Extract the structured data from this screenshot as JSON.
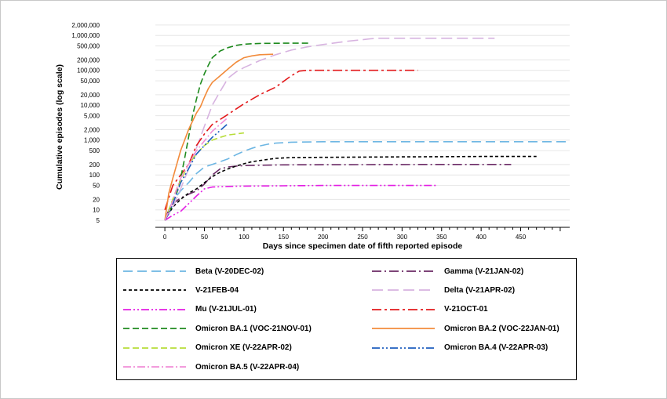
{
  "chart_data": {
    "type": "line",
    "xlabel": "Days since specimen date of fifth reported episode",
    "ylabel": "Cumulative episodes (log scale)",
    "x_ticks": [
      0,
      50,
      100,
      150,
      200,
      250,
      300,
      350,
      400,
      450
    ],
    "y_ticks": [
      5,
      10,
      20,
      50,
      100,
      200,
      500,
      1000,
      2000,
      5000,
      10000,
      20000,
      50000,
      100000,
      200000,
      500000,
      1000000,
      2000000
    ],
    "y_tick_labels": [
      "5",
      "10",
      "20",
      "50",
      "100",
      "200",
      "500",
      "1,000",
      "2,000",
      "5,000",
      "10,000",
      "20,000",
      "50,000",
      "100,000",
      "200,000",
      "500,000",
      "1,000,000",
      "2,000,000"
    ],
    "xlim": [
      -12,
      512
    ],
    "ylim": [
      3.5,
      3000000
    ],
    "y_scale": "log",
    "grid": "horizontal",
    "legend_position": "bottom",
    "series": [
      {
        "name": "Beta (V-20DEC-02)",
        "color": "#6db6e3",
        "dash": "12,6",
        "x": [
          0,
          5,
          10,
          20,
          30,
          40,
          50,
          60,
          70,
          80,
          90,
          100,
          110,
          120,
          130,
          140,
          160,
          200,
          250,
          300,
          350,
          400,
          450,
          510
        ],
        "y": [
          5,
          10,
          18,
          35,
          60,
          110,
          170,
          200,
          240,
          290,
          380,
          480,
          580,
          680,
          760,
          820,
          870,
          900,
          900,
          900,
          900,
          900,
          900,
          900
        ]
      },
      {
        "name": "Gamma (V-21JAN-02)",
        "color": "#6b2a66",
        "dash": "12,4,2,4",
        "x": [
          0,
          5,
          10,
          20,
          30,
          40,
          50,
          60,
          70,
          80,
          90,
          100,
          120,
          150,
          200,
          250,
          300,
          350,
          400,
          438
        ],
        "y": [
          5,
          10,
          15,
          22,
          28,
          35,
          55,
          100,
          150,
          170,
          180,
          185,
          190,
          195,
          197,
          198,
          199,
          200,
          200,
          200
        ]
      },
      {
        "name": "V-21FEB-04",
        "color": "#000000",
        "dash": "4,3",
        "x": [
          0,
          10,
          20,
          30,
          40,
          50,
          60,
          70,
          80,
          90,
          100,
          110,
          120,
          140,
          160,
          200,
          250,
          300,
          350,
          400,
          470
        ],
        "y": [
          5,
          12,
          20,
          30,
          40,
          60,
          90,
          120,
          150,
          180,
          210,
          240,
          260,
          300,
          315,
          320,
          325,
          330,
          335,
          340,
          340
        ]
      },
      {
        "name": "Delta (V-21APR-02)",
        "color": "#d7b3e0",
        "dash": "14,6",
        "x": [
          0,
          10,
          20,
          30,
          40,
          50,
          60,
          70,
          80,
          90,
          100,
          120,
          140,
          160,
          180,
          200,
          230,
          260,
          270,
          300,
          350,
          380,
          417
        ],
        "y": [
          5,
          12,
          40,
          150,
          600,
          2500,
          10000,
          25000,
          60000,
          90000,
          120000,
          190000,
          280000,
          380000,
          470000,
          550000,
          680000,
          800000,
          830000,
          830000,
          830000,
          830000,
          830000
        ]
      },
      {
        "name": "Mu (V-21JUL-01)",
        "color": "#e41ee4",
        "dash": "10,3,2,3,2,3",
        "x": [
          0,
          10,
          20,
          30,
          40,
          50,
          60,
          80,
          100,
          150,
          200,
          250,
          300,
          343
        ],
        "y": [
          5,
          7,
          9,
          15,
          25,
          40,
          45,
          47,
          48,
          49,
          50,
          50,
          50,
          50
        ]
      },
      {
        "name": "V-21OCT-01",
        "color": "#e31a1c",
        "dash": "12,4,3,4",
        "x": [
          0,
          10,
          20,
          30,
          40,
          50,
          60,
          80,
          100,
          120,
          140,
          160,
          170,
          180,
          200,
          250,
          300,
          320
        ],
        "y": [
          10,
          50,
          100,
          200,
          700,
          1500,
          2800,
          5500,
          11000,
          20000,
          33000,
          70000,
          95000,
          100000,
          100000,
          100000,
          100000,
          100000
        ]
      },
      {
        "name": "Omicron BA.1 (VOC-21NOV-01)",
        "color": "#1e8a1e",
        "dash": "8,4",
        "x": [
          0,
          5,
          10,
          15,
          20,
          25,
          30,
          35,
          40,
          45,
          50,
          55,
          60,
          70,
          80,
          90,
          100,
          110,
          120,
          150,
          185
        ],
        "y": [
          5,
          8,
          15,
          30,
          80,
          300,
          1200,
          5000,
          15000,
          40000,
          80000,
          140000,
          230000,
          360000,
          450000,
          520000,
          560000,
          580000,
          590000,
          600000,
          600000
        ]
      },
      {
        "name": "Omicron BA.2 (VOC-22JAN-01)",
        "color": "#f28b3b",
        "dash": "",
        "x": [
          0,
          5,
          10,
          15,
          20,
          25,
          30,
          35,
          40,
          45,
          50,
          55,
          60,
          70,
          80,
          90,
          100,
          110,
          120,
          137
        ],
        "y": [
          5,
          30,
          80,
          200,
          500,
          1000,
          2000,
          3500,
          6000,
          9000,
          17000,
          30000,
          45000,
          70000,
          110000,
          170000,
          230000,
          260000,
          280000,
          290000
        ]
      },
      {
        "name": "Omicron XE (V-22APR-02)",
        "color": "#b7dd39",
        "dash": "8,4",
        "x": [
          0,
          5,
          10,
          15,
          20,
          25,
          30,
          40,
          50,
          60,
          70,
          80,
          90,
          100
        ],
        "y": [
          5,
          10,
          20,
          40,
          70,
          120,
          200,
          400,
          700,
          1000,
          1200,
          1400,
          1500,
          1600
        ]
      },
      {
        "name": "Omicron BA.4 (V-22APR-03)",
        "color": "#1f5fbf",
        "dash": "10,3,2,3,2,3",
        "x": [
          0,
          5,
          10,
          15,
          20,
          30,
          40,
          60,
          80
        ],
        "y": [
          5,
          8,
          15,
          30,
          60,
          150,
          400,
          1200,
          3000
        ]
      },
      {
        "name": "Omicron BA.5 (V-22APR-04)",
        "color": "#f08fd8",
        "dash": "10,3,2,3",
        "x": [
          0,
          5,
          10,
          15,
          20,
          30,
          40,
          60,
          80
        ],
        "y": [
          5,
          9,
          18,
          40,
          80,
          200,
          500,
          1800,
          4500
        ]
      }
    ]
  },
  "legend": {
    "items": [
      {
        "label": "Beta (V-20DEC-02)"
      },
      {
        "label": "Gamma (V-21JAN-02)"
      },
      {
        "label": "V-21FEB-04"
      },
      {
        "label": "Delta (V-21APR-02)"
      },
      {
        "label": "Mu (V-21JUL-01)"
      },
      {
        "label": "V-21OCT-01"
      },
      {
        "label": "Omicron BA.1 (VOC-21NOV-01)"
      },
      {
        "label": "Omicron BA.2 (VOC-22JAN-01)"
      },
      {
        "label": "Omicron XE (V-22APR-02)"
      },
      {
        "label": "Omicron BA.4 (V-22APR-03)"
      },
      {
        "label": "Omicron BA.5 (V-22APR-04)"
      }
    ]
  }
}
